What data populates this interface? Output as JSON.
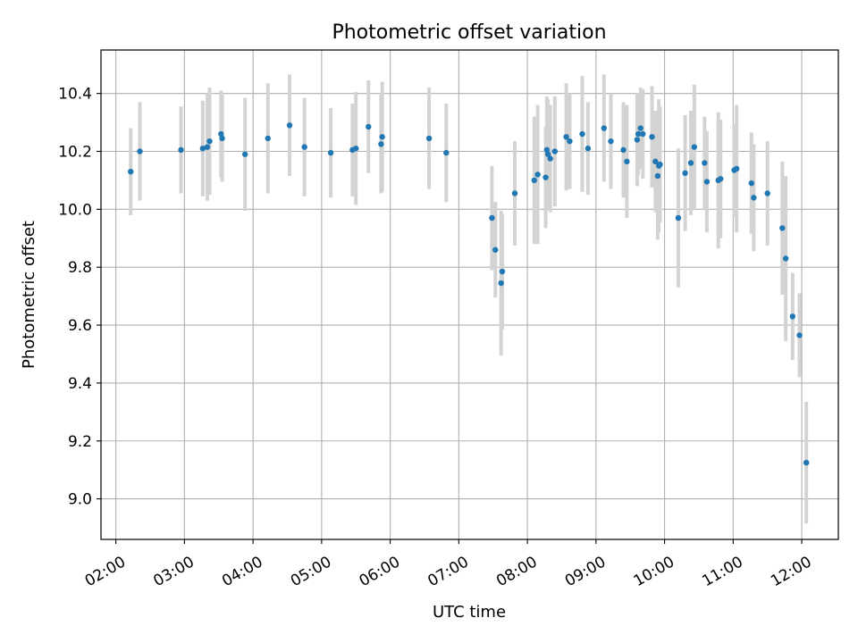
{
  "chart_data": {
    "type": "scatter",
    "title": "Photometric offset variation",
    "xlabel": "UTC time",
    "ylabel": "Photometric offset",
    "x_ticks": [
      "02:00",
      "03:00",
      "04:00",
      "05:00",
      "06:00",
      "07:00",
      "08:00",
      "09:00",
      "10:00",
      "11:00",
      "12:00"
    ],
    "y_ticks": [
      "9.0",
      "9.2",
      "9.4",
      "9.6",
      "9.8",
      "10.0",
      "10.2",
      "10.4"
    ],
    "xlim": [
      "01:47",
      "12:32"
    ],
    "ylim": [
      8.86,
      10.55
    ],
    "grid": true,
    "colors": {
      "point": "#1f77b4",
      "errorbar": "#d3d3d3",
      "grid": "#b0b0b0"
    },
    "series": [
      {
        "points": [
          {
            "x": "02:13",
            "y": 10.13,
            "err": 0.15
          },
          {
            "x": "02:21",
            "y": 10.2,
            "err": 0.17
          },
          {
            "x": "02:57",
            "y": 10.205,
            "err": 0.15
          },
          {
            "x": "03:16",
            "y": 10.21,
            "err": 0.165
          },
          {
            "x": "03:20",
            "y": 10.215,
            "err": 0.185
          },
          {
            "x": "03:22",
            "y": 10.235,
            "err": 0.185
          },
          {
            "x": "03:32",
            "y": 10.26,
            "err": 0.15
          },
          {
            "x": "03:33",
            "y": 10.245,
            "err": 0.15
          },
          {
            "x": "03:53",
            "y": 10.19,
            "err": 0.195
          },
          {
            "x": "04:13",
            "y": 10.245,
            "err": 0.19
          },
          {
            "x": "04:32",
            "y": 10.29,
            "err": 0.175
          },
          {
            "x": "04:45",
            "y": 10.215,
            "err": 0.17
          },
          {
            "x": "05:08",
            "y": 10.195,
            "err": 0.155
          },
          {
            "x": "05:27",
            "y": 10.205,
            "err": 0.16
          },
          {
            "x": "05:30",
            "y": 10.21,
            "err": 0.195
          },
          {
            "x": "05:41",
            "y": 10.285,
            "err": 0.16
          },
          {
            "x": "05:52",
            "y": 10.225,
            "err": 0.17
          },
          {
            "x": "05:53",
            "y": 10.25,
            "err": 0.19
          },
          {
            "x": "06:34",
            "y": 10.245,
            "err": 0.175
          },
          {
            "x": "06:49",
            "y": 10.195,
            "err": 0.17
          },
          {
            "x": "07:29",
            "y": 9.97,
            "err": 0.18
          },
          {
            "x": "07:32",
            "y": 9.86,
            "err": 0.165
          },
          {
            "x": "07:37",
            "y": 9.745,
            "err": 0.25
          },
          {
            "x": "07:38",
            "y": 9.785,
            "err": 0.2
          },
          {
            "x": "07:49",
            "y": 10.055,
            "err": 0.18
          },
          {
            "x": "08:06",
            "y": 10.1,
            "err": 0.22
          },
          {
            "x": "08:09",
            "y": 10.12,
            "err": 0.24
          },
          {
            "x": "08:16",
            "y": 10.11,
            "err": 0.175
          },
          {
            "x": "08:17",
            "y": 10.205,
            "err": 0.185
          },
          {
            "x": "08:18",
            "y": 10.19,
            "err": 0.19
          },
          {
            "x": "08:20",
            "y": 10.175,
            "err": 0.185
          },
          {
            "x": "08:24",
            "y": 10.2,
            "err": 0.19
          },
          {
            "x": "08:34",
            "y": 10.25,
            "err": 0.185
          },
          {
            "x": "08:37",
            "y": 10.235,
            "err": 0.165
          },
          {
            "x": "08:48",
            "y": 10.26,
            "err": 0.2
          },
          {
            "x": "08:53",
            "y": 10.21,
            "err": 0.16
          },
          {
            "x": "09:07",
            "y": 10.28,
            "err": 0.185
          },
          {
            "x": "09:13",
            "y": 10.235,
            "err": 0.165
          },
          {
            "x": "09:24",
            "y": 10.205,
            "err": 0.165
          },
          {
            "x": "09:27",
            "y": 10.165,
            "err": 0.195
          },
          {
            "x": "09:36",
            "y": 10.24,
            "err": 0.16
          },
          {
            "x": "09:37",
            "y": 10.26,
            "err": 0.14
          },
          {
            "x": "09:39",
            "y": 10.28,
            "err": 0.14
          },
          {
            "x": "09:41",
            "y": 10.26,
            "err": 0.155
          },
          {
            "x": "09:49",
            "y": 10.25,
            "err": 0.175
          },
          {
            "x": "09:52",
            "y": 10.165,
            "err": 0.175
          },
          {
            "x": "09:54",
            "y": 10.115,
            "err": 0.22
          },
          {
            "x": "09:55",
            "y": 10.15,
            "err": 0.23
          },
          {
            "x": "09:56",
            "y": 10.155,
            "err": 0.2
          },
          {
            "x": "10:12",
            "y": 9.97,
            "err": 0.24
          },
          {
            "x": "10:18",
            "y": 10.125,
            "err": 0.2
          },
          {
            "x": "10:23",
            "y": 10.16,
            "err": 0.18
          },
          {
            "x": "10:26",
            "y": 10.215,
            "err": 0.215
          },
          {
            "x": "10:35",
            "y": 10.16,
            "err": 0.16
          },
          {
            "x": "10:37",
            "y": 10.095,
            "err": 0.175
          },
          {
            "x": "10:47",
            "y": 10.1,
            "err": 0.235
          },
          {
            "x": "10:49",
            "y": 10.105,
            "err": 0.205
          },
          {
            "x": "11:01",
            "y": 10.135,
            "err": 0.16
          },
          {
            "x": "11:03",
            "y": 10.14,
            "err": 0.22
          },
          {
            "x": "11:16",
            "y": 10.09,
            "err": 0.175
          },
          {
            "x": "11:18",
            "y": 10.04,
            "err": 0.185
          },
          {
            "x": "11:30",
            "y": 10.055,
            "err": 0.18
          },
          {
            "x": "11:43",
            "y": 9.935,
            "err": 0.23
          },
          {
            "x": "11:46",
            "y": 9.83,
            "err": 0.285
          },
          {
            "x": "11:52",
            "y": 9.63,
            "err": 0.15
          },
          {
            "x": "11:58",
            "y": 9.565,
            "err": 0.145
          },
          {
            "x": "12:04",
            "y": 9.125,
            "err": 0.21
          }
        ]
      }
    ]
  }
}
